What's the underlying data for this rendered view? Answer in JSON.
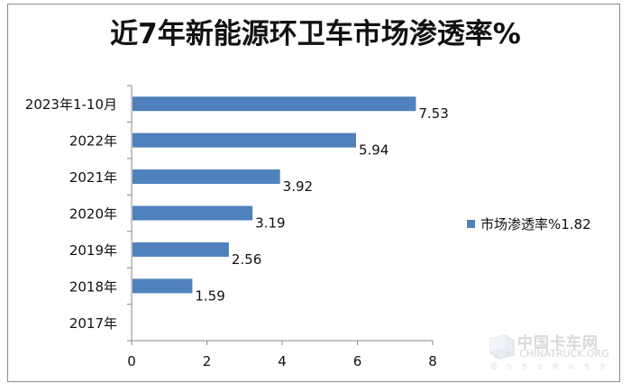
{
  "chart_data": {
    "type": "bar",
    "orientation": "horizontal",
    "title": "近7年新能源环卫车市场渗透率%",
    "categories": [
      "2023年1-10月",
      "2022年",
      "2021年",
      "2020年",
      "2019年",
      "2018年",
      "2017年"
    ],
    "series": [
      {
        "name": "市场渗透率%1.82",
        "values": [
          7.53,
          5.94,
          3.92,
          3.19,
          2.56,
          1.59,
          null
        ]
      }
    ],
    "data_labels": [
      "7.53",
      "5.94",
      "3.92",
      "3.19",
      "2.56",
      "1.59",
      ""
    ],
    "xlim": [
      0,
      8
    ],
    "x_ticks": [
      "0",
      "2",
      "4",
      "6",
      "8"
    ],
    "grid": false,
    "legend_position": "right",
    "bar_color": "#4f81bd"
  },
  "watermark": {
    "cn": "中国卡车网",
    "en": "CHINATRUCK.ORG",
    "sub": "因 为 专 业 所 以 专 注",
    "logo_color": "#e9eef4"
  }
}
